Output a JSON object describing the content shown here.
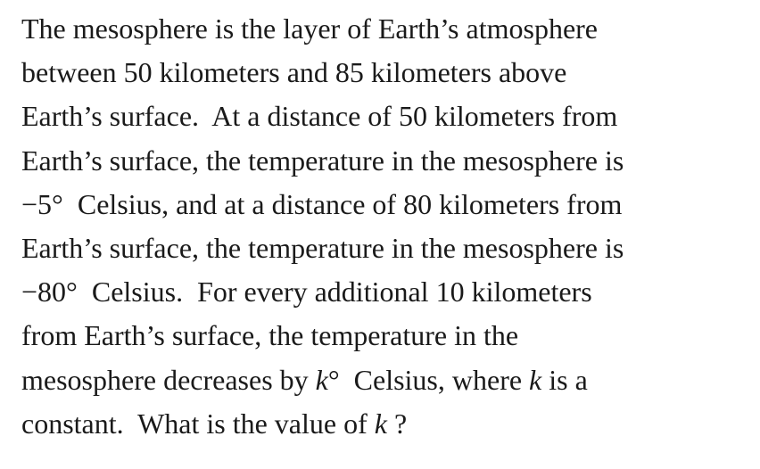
{
  "question": {
    "lines": [
      [
        "The mesosphere is the layer of Earth’s atmosphere"
      ],
      [
        "between 50 kilometers and 85 kilometers above"
      ],
      [
        "Earth’s surface.  At a distance of 50 kilometers from"
      ],
      [
        "Earth’s surface, the temperature in the mesosphere is"
      ],
      [
        "−5°  Celsius, and at a distance of 80 kilometers from"
      ],
      [
        "Earth’s surface, the temperature in the mesosphere is"
      ],
      [
        "−80°  Celsius.  For every additional 10 kilometers"
      ],
      [
        "from Earth’s surface, the temperature in the"
      ],
      [
        "mesosphere decreases by ",
        "k",
        "°  Celsius, where ",
        "k",
        " is a"
      ],
      [
        "constant.  What is the value of ",
        "k",
        " ?"
      ]
    ]
  }
}
